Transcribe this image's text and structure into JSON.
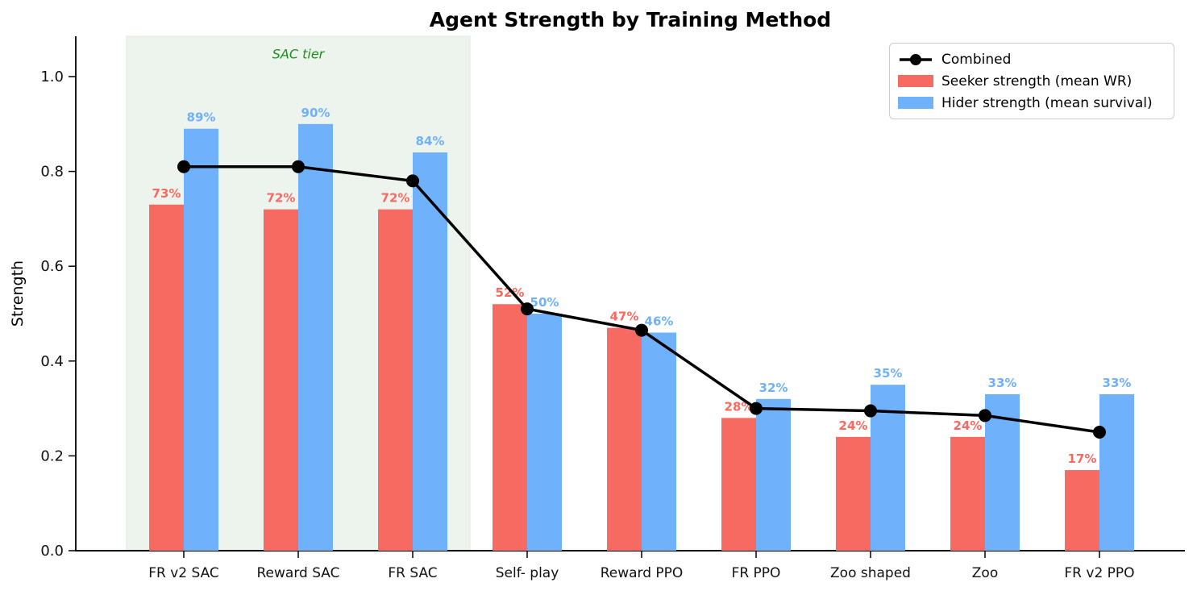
{
  "chart_data": {
    "type": "bar",
    "title": "Agent Strength by Training Method",
    "ylabel": "Strength",
    "categories": [
      "FR v2 SAC",
      "Reward SAC",
      "FR SAC",
      "Self- play",
      "Reward PPO",
      "FR PPO",
      "Zoo shaped",
      "Zoo",
      "FR v2 PPO"
    ],
    "series": [
      {
        "name": "Seeker strength (mean WR)",
        "color": "#f76a62",
        "values": [
          0.73,
          0.72,
          0.72,
          0.52,
          0.47,
          0.28,
          0.24,
          0.24,
          0.17
        ],
        "labels": [
          "73%",
          "72%",
          "72%",
          "52%",
          "47%",
          "28%",
          "24%",
          "24%",
          "17%"
        ]
      },
      {
        "name": "Hider strength (mean survival)",
        "color": "#6fb1fb",
        "values": [
          0.89,
          0.9,
          0.84,
          0.5,
          0.46,
          0.32,
          0.35,
          0.33,
          0.33
        ],
        "labels": [
          "89%",
          "90%",
          "84%",
          "50%",
          "46%",
          "32%",
          "35%",
          "33%",
          "33%"
        ]
      }
    ],
    "line_series": {
      "name": "Combined",
      "color": "#000000",
      "values": [
        0.81,
        0.81,
        0.78,
        0.51,
        0.465,
        0.3,
        0.295,
        0.285,
        0.25
      ]
    },
    "annotation": {
      "text": "SAC tier",
      "color": "#1d8f1d",
      "region_start_category": 0,
      "region_end_category": 2,
      "region_color": "#edf4ed",
      "region_border_color": "#dfeadf"
    },
    "y_ticks": [
      "0.0",
      "0.2",
      "0.4",
      "0.6",
      "0.8",
      "1.0"
    ],
    "y_tick_values": [
      0,
      0.2,
      0.4,
      0.6,
      0.8,
      1.0
    ],
    "ylim": [
      0,
      1.085
    ],
    "grid": false,
    "legend_position": "upper right"
  }
}
